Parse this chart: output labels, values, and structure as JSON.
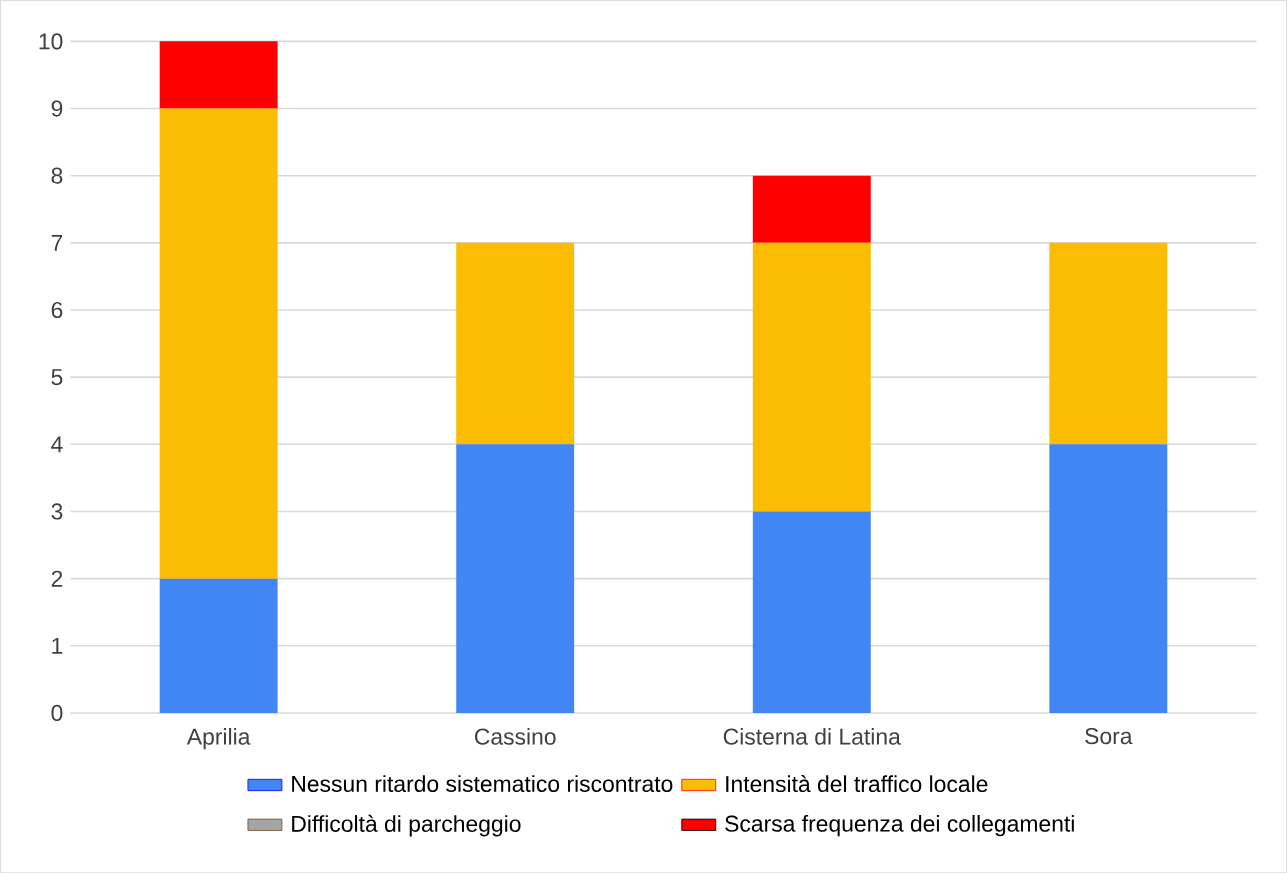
{
  "chart_data": {
    "type": "bar",
    "stacked": true,
    "categories": [
      "Aprilia",
      "Cassino",
      "Cisterna di Latina",
      "Sora"
    ],
    "series": [
      {
        "name": "Nessun ritardo sistematico riscontrato",
        "color": "#4285f4",
        "values": [
          2,
          4,
          3,
          4
        ]
      },
      {
        "name": "Intensità del traffico locale",
        "color": "#fbbc04",
        "values": [
          7,
          3,
          4,
          3
        ]
      },
      {
        "name": "Difficoltà di parcheggio",
        "color": "#a5a5a5",
        "values": [
          0,
          0,
          0,
          0
        ]
      },
      {
        "name": "Scarsa frequenza dei collegamenti",
        "color": "#ff0000",
        "values": [
          1,
          0,
          1,
          0
        ]
      }
    ],
    "ylim": [
      0,
      10
    ],
    "yticks": [
      0,
      1,
      2,
      3,
      4,
      5,
      6,
      7,
      8,
      9,
      10
    ],
    "grid": "y",
    "legend": "bottom"
  }
}
